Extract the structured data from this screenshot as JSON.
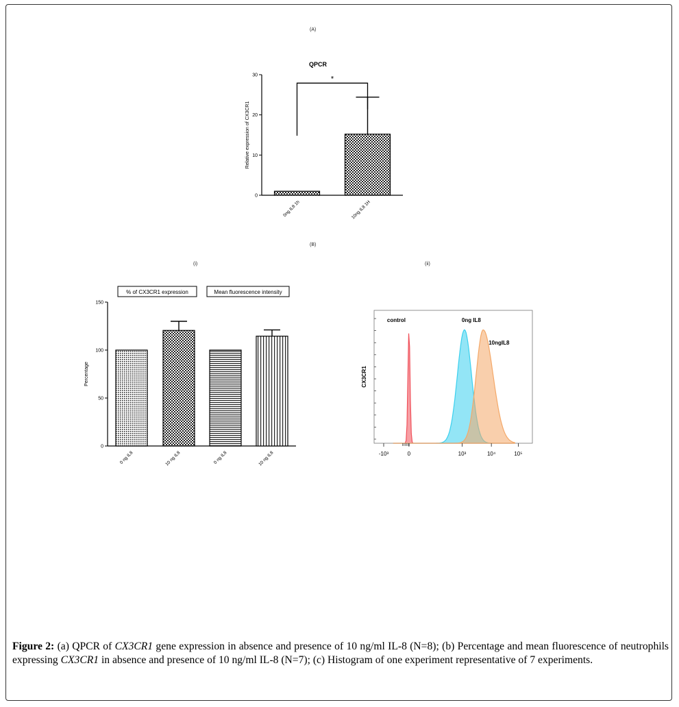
{
  "panel_labels": {
    "a": "(A)",
    "b": "(B)",
    "b_i": "(i)",
    "b_ii": "(ii)"
  },
  "chart_data": [
    {
      "id": "qpcr",
      "type": "bar",
      "title": "QPCR",
      "ylabel": "Relative expression of CX3CR1",
      "xlabel": "",
      "categories": [
        "0ng IL8 1h",
        "10ng IL8 1H"
      ],
      "values": [
        1.0,
        15.2
      ],
      "errors": [
        0,
        9.2
      ],
      "ylim": [
        0,
        30
      ],
      "yticks": [
        0,
        10,
        20,
        30
      ],
      "significance": {
        "from": 0,
        "to": 1,
        "label": "*"
      },
      "fill_pattern": "checker"
    },
    {
      "id": "percentage",
      "type": "bar",
      "ylabel": "Percentage",
      "xlabel": "",
      "categories": [
        "0 ng IL8",
        "10 ng IL8",
        "0 ng IL8",
        "10 ng IL8"
      ],
      "values": [
        100,
        120.5,
        100,
        114.5
      ],
      "errors": [
        0,
        9.5,
        0,
        6.5
      ],
      "patterns": [
        "dots",
        "checker",
        "hlines",
        "vlines"
      ],
      "ylim": [
        0,
        150
      ],
      "yticks": [
        0,
        50,
        100,
        150
      ],
      "group_labels": [
        "% of CX3CR1 expression",
        "Mean fluorescence intensity"
      ]
    },
    {
      "id": "histogram",
      "type": "area",
      "ylabel": "CX3CR1",
      "xlabel": "",
      "x_scale": "biexponential",
      "xtick_labels": [
        "-10³",
        "0",
        "10³",
        "10⁴",
        "10⁵"
      ],
      "series": [
        {
          "name": "control",
          "color": "#f0505a",
          "peak_decade": 0.08,
          "width": 0.045,
          "height": 0.92
        },
        {
          "name": "0ng IL8",
          "color": "#3ad0ee",
          "peak_decade": 2.45,
          "width": 0.3,
          "height": 0.92
        },
        {
          "name": "10ngIL8",
          "color": "#f4a868",
          "peak_decade": 3.25,
          "width": 0.3,
          "height": 0.92
        }
      ]
    }
  ],
  "caption": {
    "label": "Figure 2:",
    "p1": " (a) QPCR of ",
    "gene1": "CX3CR1",
    "p2": " gene expression in absence and presence of 10 ng/ml IL-8 (N=8); (b) Percentage and mean fluorescence of neutrophils expressing ",
    "gene2": "CX3CR1",
    "p3": " in absence and presence of 10 ng/ml IL-8 (N=7); (c) Histogram of one experiment representative of 7 experiments."
  }
}
